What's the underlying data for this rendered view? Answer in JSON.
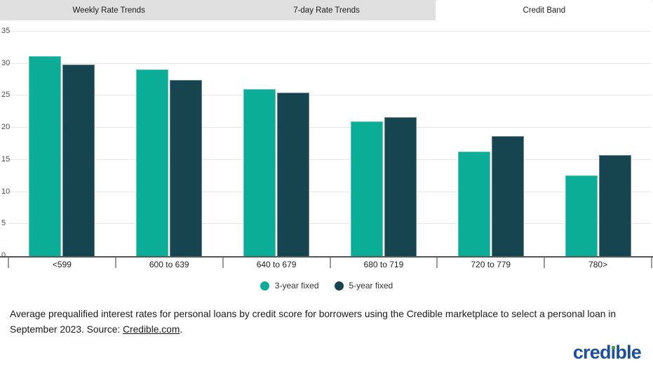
{
  "tabs": [
    {
      "label": "Weekly Rate Trends",
      "active": false
    },
    {
      "label": "7-day Rate Trends",
      "active": false
    },
    {
      "label": "Credit Band",
      "active": true
    }
  ],
  "chart_data": {
    "type": "bar",
    "title": "",
    "categories": [
      "<599",
      "600 to 639",
      "640 to 679",
      "680 to 719",
      "720 to 779",
      "780>"
    ],
    "series": [
      {
        "name": "3-year fixed",
        "color": "#0cad96",
        "values": [
          31.2,
          29.1,
          26.0,
          21.0,
          16.3,
          12.6
        ]
      },
      {
        "name": "5-year fixed",
        "color": "#16454f",
        "values": [
          29.9,
          27.5,
          25.5,
          21.7,
          18.7,
          15.7
        ]
      }
    ],
    "xlabel": "",
    "ylabel": "",
    "ylim": [
      0,
      35
    ],
    "yticks": [
      0,
      5,
      10,
      15,
      20,
      25,
      30,
      35
    ],
    "grid": true,
    "legend_position": "bottom"
  },
  "caption": {
    "line1": "Average prequalified interest rates for personal loans by credit score for borrowers using the Credible marketplace to select a personal loan in",
    "line2_prefix": "September 2023. Source: ",
    "link_text": "Credible.com",
    "suffix": "."
  },
  "logo": {
    "pre": "cred",
    "i": "ı",
    "post": "ble",
    "blue": "#1c4f9d",
    "green": "#3fa54a"
  },
  "colors": {
    "tab_bg": "#e0e0e0",
    "active_tab_bg": "#ffffff",
    "grid": "#e7e7e7",
    "axis": "#55585c",
    "tick": "#9b9b9b"
  }
}
